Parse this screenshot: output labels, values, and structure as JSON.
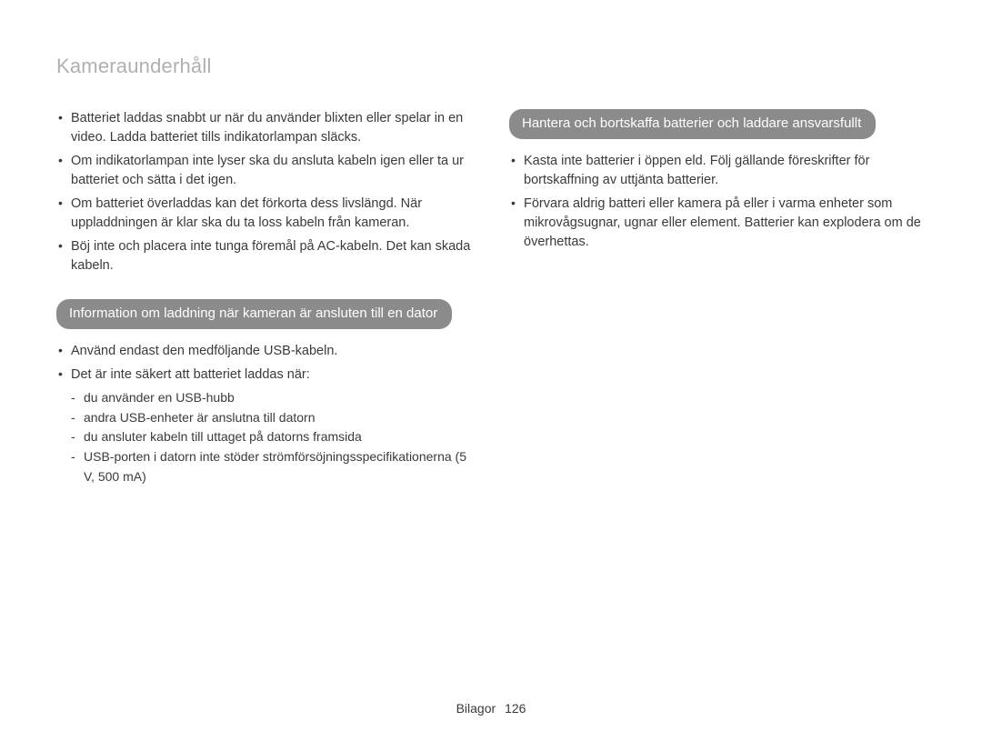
{
  "pageTitle": "Kameraunderhåll",
  "colors": {
    "titleColor": "#b0b0b0",
    "textColor": "#3a3a3a",
    "pillBg": "#8b8b8b",
    "pillText": "#ffffff",
    "background": "#ffffff"
  },
  "typography": {
    "title_fontsize": 22,
    "body_fontsize": 14.5,
    "pill_fontsize": 15,
    "footer_fontsize": 14
  },
  "leftColumn": {
    "topBullets": [
      "Batteriet laddas snabbt ur när du använder blixten eller spelar in en video. Ladda batteriet tills indikatorlampan släcks.",
      "Om indikatorlampan inte lyser ska du ansluta kabeln igen eller ta ur batteriet och sätta i det igen.",
      "Om batteriet överladdas kan det förkorta dess livslängd. När uppladdningen är klar ska du ta loss kabeln från kameran.",
      "Böj inte och placera inte tunga föremål på AC-kabeln. Det kan skada kabeln."
    ],
    "pill": "Information om laddning när kameran är ansluten till en dator",
    "midBullets": [
      "Använd endast den medföljande USB-kabeln.",
      "Det är inte säkert att batteriet laddas när:"
    ],
    "subDashes": [
      "du använder en USB-hubb",
      "andra USB-enheter är anslutna till datorn",
      "du ansluter kabeln till uttaget på datorns framsida",
      "USB-porten i datorn inte stöder strömförsöjningsspecifikationerna (5 V, 500 mA)"
    ]
  },
  "rightColumn": {
    "pill": "Hantera och bortskaffa batterier och laddare ansvarsfullt",
    "bullets": [
      "Kasta inte batterier i öppen eld. Följ gällande föreskrifter för bortskaffning av uttjänta batterier.",
      "Förvara aldrig batteri eller kamera på eller i varma enheter som mikrovågsugnar, ugnar eller element. Batterier kan explodera om de överhettas."
    ]
  },
  "footer": {
    "label": "Bilagor",
    "page": "126"
  }
}
